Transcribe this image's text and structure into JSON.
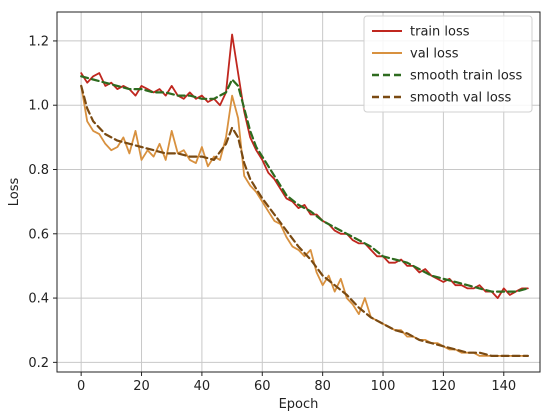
{
  "chart_data": {
    "type": "line",
    "xlabel": "Epoch",
    "ylabel": "Loss",
    "xlim": [
      -8,
      152
    ],
    "ylim": [
      0.17,
      1.29
    ],
    "xticks": [
      0,
      20,
      40,
      60,
      80,
      100,
      120,
      140
    ],
    "yticks": [
      0.2,
      0.4,
      0.6,
      0.8,
      1.0,
      1.2
    ],
    "xtick_labels": [
      "0",
      "20",
      "40",
      "60",
      "80",
      "100",
      "120",
      "140"
    ],
    "ytick_labels": [
      "0.2",
      "0.4",
      "0.6",
      "0.8",
      "1.0",
      "1.2"
    ],
    "grid": true,
    "legend_position": "top-right",
    "series": [
      {
        "name": "train loss",
        "color": "#c0271f",
        "style": "solid",
        "points": [
          [
            0,
            1.1
          ],
          [
            2,
            1.07
          ],
          [
            4,
            1.09
          ],
          [
            6,
            1.1
          ],
          [
            8,
            1.06
          ],
          [
            10,
            1.07
          ],
          [
            12,
            1.05
          ],
          [
            14,
            1.06
          ],
          [
            16,
            1.05
          ],
          [
            18,
            1.03
          ],
          [
            20,
            1.06
          ],
          [
            22,
            1.05
          ],
          [
            24,
            1.04
          ],
          [
            26,
            1.05
          ],
          [
            28,
            1.03
          ],
          [
            30,
            1.06
          ],
          [
            32,
            1.03
          ],
          [
            34,
            1.02
          ],
          [
            36,
            1.04
          ],
          [
            38,
            1.02
          ],
          [
            40,
            1.03
          ],
          [
            42,
            1.01
          ],
          [
            44,
            1.02
          ],
          [
            46,
            1.0
          ],
          [
            48,
            1.04
          ],
          [
            50,
            1.22
          ],
          [
            52,
            1.1
          ],
          [
            54,
            0.98
          ],
          [
            56,
            0.9
          ],
          [
            58,
            0.86
          ],
          [
            60,
            0.83
          ],
          [
            62,
            0.79
          ],
          [
            64,
            0.77
          ],
          [
            66,
            0.74
          ],
          [
            68,
            0.71
          ],
          [
            70,
            0.7
          ],
          [
            72,
            0.68
          ],
          [
            74,
            0.69
          ],
          [
            76,
            0.66
          ],
          [
            78,
            0.66
          ],
          [
            80,
            0.64
          ],
          [
            82,
            0.63
          ],
          [
            84,
            0.61
          ],
          [
            86,
            0.6
          ],
          [
            88,
            0.6
          ],
          [
            90,
            0.58
          ],
          [
            92,
            0.57
          ],
          [
            94,
            0.57
          ],
          [
            96,
            0.55
          ],
          [
            98,
            0.53
          ],
          [
            100,
            0.53
          ],
          [
            102,
            0.51
          ],
          [
            104,
            0.51
          ],
          [
            106,
            0.52
          ],
          [
            108,
            0.5
          ],
          [
            110,
            0.5
          ],
          [
            112,
            0.48
          ],
          [
            114,
            0.49
          ],
          [
            116,
            0.47
          ],
          [
            118,
            0.46
          ],
          [
            120,
            0.45
          ],
          [
            122,
            0.46
          ],
          [
            124,
            0.44
          ],
          [
            126,
            0.44
          ],
          [
            128,
            0.43
          ],
          [
            130,
            0.43
          ],
          [
            132,
            0.44
          ],
          [
            134,
            0.42
          ],
          [
            136,
            0.42
          ],
          [
            138,
            0.4
          ],
          [
            140,
            0.43
          ],
          [
            142,
            0.41
          ],
          [
            144,
            0.42
          ],
          [
            146,
            0.43
          ],
          [
            148,
            0.43
          ]
        ]
      },
      {
        "name": "val loss",
        "color": "#d8913f",
        "style": "solid",
        "points": [
          [
            0,
            1.06
          ],
          [
            2,
            0.95
          ],
          [
            4,
            0.92
          ],
          [
            6,
            0.91
          ],
          [
            8,
            0.88
          ],
          [
            10,
            0.86
          ],
          [
            12,
            0.87
          ],
          [
            14,
            0.9
          ],
          [
            16,
            0.85
          ],
          [
            18,
            0.92
          ],
          [
            20,
            0.83
          ],
          [
            22,
            0.86
          ],
          [
            24,
            0.84
          ],
          [
            26,
            0.88
          ],
          [
            28,
            0.83
          ],
          [
            30,
            0.92
          ],
          [
            32,
            0.85
          ],
          [
            34,
            0.86
          ],
          [
            36,
            0.83
          ],
          [
            38,
            0.82
          ],
          [
            40,
            0.87
          ],
          [
            42,
            0.81
          ],
          [
            44,
            0.84
          ],
          [
            46,
            0.83
          ],
          [
            48,
            0.9
          ],
          [
            50,
            1.03
          ],
          [
            52,
            0.96
          ],
          [
            54,
            0.78
          ],
          [
            56,
            0.75
          ],
          [
            58,
            0.73
          ],
          [
            60,
            0.7
          ],
          [
            62,
            0.67
          ],
          [
            64,
            0.64
          ],
          [
            66,
            0.63
          ],
          [
            68,
            0.59
          ],
          [
            70,
            0.56
          ],
          [
            72,
            0.55
          ],
          [
            74,
            0.53
          ],
          [
            76,
            0.55
          ],
          [
            78,
            0.48
          ],
          [
            80,
            0.44
          ],
          [
            82,
            0.47
          ],
          [
            84,
            0.42
          ],
          [
            86,
            0.46
          ],
          [
            88,
            0.4
          ],
          [
            90,
            0.38
          ],
          [
            92,
            0.35
          ],
          [
            94,
            0.4
          ],
          [
            96,
            0.34
          ],
          [
            98,
            0.33
          ],
          [
            100,
            0.32
          ],
          [
            102,
            0.31
          ],
          [
            104,
            0.3
          ],
          [
            106,
            0.3
          ],
          [
            108,
            0.28
          ],
          [
            110,
            0.28
          ],
          [
            112,
            0.27
          ],
          [
            114,
            0.27
          ],
          [
            116,
            0.26
          ],
          [
            118,
            0.26
          ],
          [
            120,
            0.25
          ],
          [
            122,
            0.24
          ],
          [
            124,
            0.24
          ],
          [
            126,
            0.23
          ],
          [
            128,
            0.23
          ],
          [
            130,
            0.23
          ],
          [
            132,
            0.22
          ],
          [
            134,
            0.22
          ],
          [
            136,
            0.22
          ],
          [
            138,
            0.22
          ],
          [
            140,
            0.22
          ],
          [
            142,
            0.22
          ],
          [
            144,
            0.22
          ],
          [
            146,
            0.22
          ],
          [
            148,
            0.22
          ]
        ]
      },
      {
        "name": "smooth train loss",
        "color": "#2e6b1f",
        "style": "dashed",
        "points": [
          [
            0,
            1.09
          ],
          [
            4,
            1.08
          ],
          [
            8,
            1.07
          ],
          [
            12,
            1.06
          ],
          [
            16,
            1.05
          ],
          [
            20,
            1.05
          ],
          [
            24,
            1.04
          ],
          [
            28,
            1.04
          ],
          [
            32,
            1.03
          ],
          [
            36,
            1.03
          ],
          [
            40,
            1.02
          ],
          [
            44,
            1.02
          ],
          [
            48,
            1.04
          ],
          [
            50,
            1.08
          ],
          [
            52,
            1.06
          ],
          [
            54,
            0.99
          ],
          [
            56,
            0.92
          ],
          [
            58,
            0.87
          ],
          [
            60,
            0.84
          ],
          [
            64,
            0.78
          ],
          [
            68,
            0.72
          ],
          [
            72,
            0.69
          ],
          [
            76,
            0.67
          ],
          [
            80,
            0.64
          ],
          [
            84,
            0.62
          ],
          [
            88,
            0.6
          ],
          [
            92,
            0.58
          ],
          [
            96,
            0.56
          ],
          [
            100,
            0.53
          ],
          [
            104,
            0.52
          ],
          [
            108,
            0.51
          ],
          [
            112,
            0.49
          ],
          [
            116,
            0.47
          ],
          [
            120,
            0.46
          ],
          [
            124,
            0.45
          ],
          [
            128,
            0.44
          ],
          [
            132,
            0.43
          ],
          [
            136,
            0.42
          ],
          [
            140,
            0.42
          ],
          [
            144,
            0.42
          ],
          [
            148,
            0.43
          ]
        ]
      },
      {
        "name": "smooth val loss",
        "color": "#7a4a12",
        "style": "dashed",
        "points": [
          [
            0,
            1.06
          ],
          [
            2,
            0.99
          ],
          [
            4,
            0.95
          ],
          [
            8,
            0.91
          ],
          [
            12,
            0.89
          ],
          [
            16,
            0.88
          ],
          [
            20,
            0.87
          ],
          [
            24,
            0.86
          ],
          [
            28,
            0.85
          ],
          [
            32,
            0.85
          ],
          [
            36,
            0.84
          ],
          [
            40,
            0.84
          ],
          [
            44,
            0.83
          ],
          [
            48,
            0.88
          ],
          [
            50,
            0.93
          ],
          [
            52,
            0.9
          ],
          [
            54,
            0.82
          ],
          [
            56,
            0.77
          ],
          [
            58,
            0.74
          ],
          [
            60,
            0.71
          ],
          [
            64,
            0.66
          ],
          [
            68,
            0.61
          ],
          [
            72,
            0.56
          ],
          [
            76,
            0.52
          ],
          [
            80,
            0.47
          ],
          [
            84,
            0.44
          ],
          [
            88,
            0.41
          ],
          [
            92,
            0.37
          ],
          [
            96,
            0.34
          ],
          [
            100,
            0.32
          ],
          [
            104,
            0.3
          ],
          [
            108,
            0.29
          ],
          [
            112,
            0.27
          ],
          [
            116,
            0.26
          ],
          [
            120,
            0.25
          ],
          [
            124,
            0.24
          ],
          [
            128,
            0.23
          ],
          [
            132,
            0.23
          ],
          [
            136,
            0.22
          ],
          [
            140,
            0.22
          ],
          [
            144,
            0.22
          ],
          [
            148,
            0.22
          ]
        ]
      }
    ]
  }
}
